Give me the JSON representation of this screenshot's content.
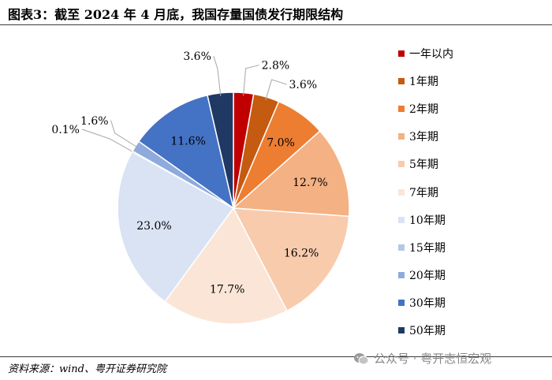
{
  "title": "图表3：截至 2024 年 4 月底，我国存量国债发行期限结构",
  "source": "资料来源：wind、粤开证券研究院",
  "watermark": {
    "text": "公众号 · 粤开志恒宏观",
    "icon": "wechat-icon"
  },
  "chart_data": {
    "type": "pie",
    "title": "",
    "legend_position": "right",
    "slices": [
      {
        "label": "一年以内",
        "value": 2.8,
        "value_label": "2.8%",
        "color": "#C00000"
      },
      {
        "label": "1年期",
        "value": 3.6,
        "value_label": "3.6%",
        "color": "#C55A11"
      },
      {
        "label": "2年期",
        "value": 7.0,
        "value_label": "7.0%",
        "color": "#ED7D31"
      },
      {
        "label": "3年期",
        "value": 12.7,
        "value_label": "12.7%",
        "color": "#F4B183"
      },
      {
        "label": "5年期",
        "value": 16.2,
        "value_label": "16.2%",
        "color": "#F8CBAD"
      },
      {
        "label": "7年期",
        "value": 17.7,
        "value_label": "17.7%",
        "color": "#FBE5D6"
      },
      {
        "label": "10年期",
        "value": 23.0,
        "value_label": "23.0%",
        "color": "#DAE3F3"
      },
      {
        "label": "15年期",
        "value": 0.1,
        "value_label": "0.1%",
        "color": "#B4C7E7"
      },
      {
        "label": "20年期",
        "value": 1.6,
        "value_label": "1.6%",
        "color": "#8FAADC"
      },
      {
        "label": "30年期",
        "value": 11.6,
        "value_label": "11.6%",
        "color": "#4472C4"
      },
      {
        "label": "50年期",
        "value": 3.6,
        "value_label": "3.6%",
        "color": "#203864"
      }
    ]
  }
}
